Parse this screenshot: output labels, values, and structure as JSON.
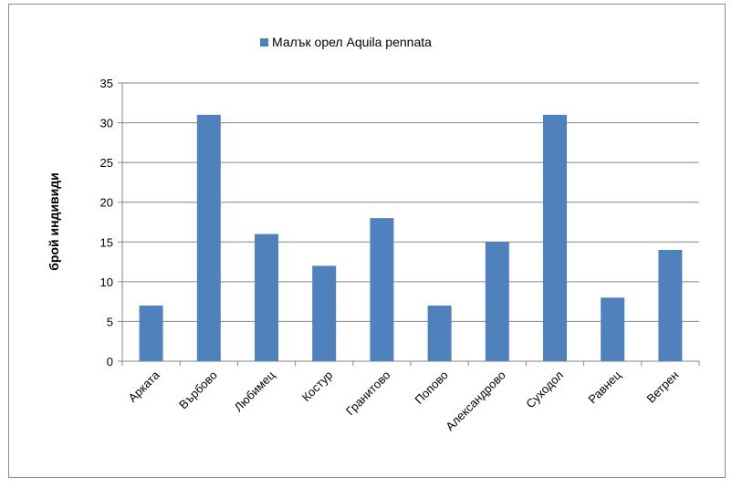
{
  "chart_data": {
    "type": "bar",
    "categories": [
      "Арката",
      "Върбово",
      "Любимец",
      "Костур",
      "Гранитово",
      "Попово",
      "Александрово",
      "Суходол",
      "Равнец",
      "Ветрен"
    ],
    "series": [
      {
        "name": "Малък орел Aquila pennata",
        "values": [
          7,
          31,
          16,
          12,
          18,
          7,
          15,
          31,
          8,
          14
        ]
      }
    ],
    "ylabel": "брой индивиди",
    "xlabel": "",
    "ylim": [
      0,
      35
    ],
    "yticks": [
      "0",
      "5",
      "10",
      "15",
      "20",
      "25",
      "30",
      "35"
    ],
    "grid": true,
    "legend": "top",
    "colors": {
      "series": "#4f81bd",
      "grid": "#868686",
      "axis": "#868686"
    }
  }
}
